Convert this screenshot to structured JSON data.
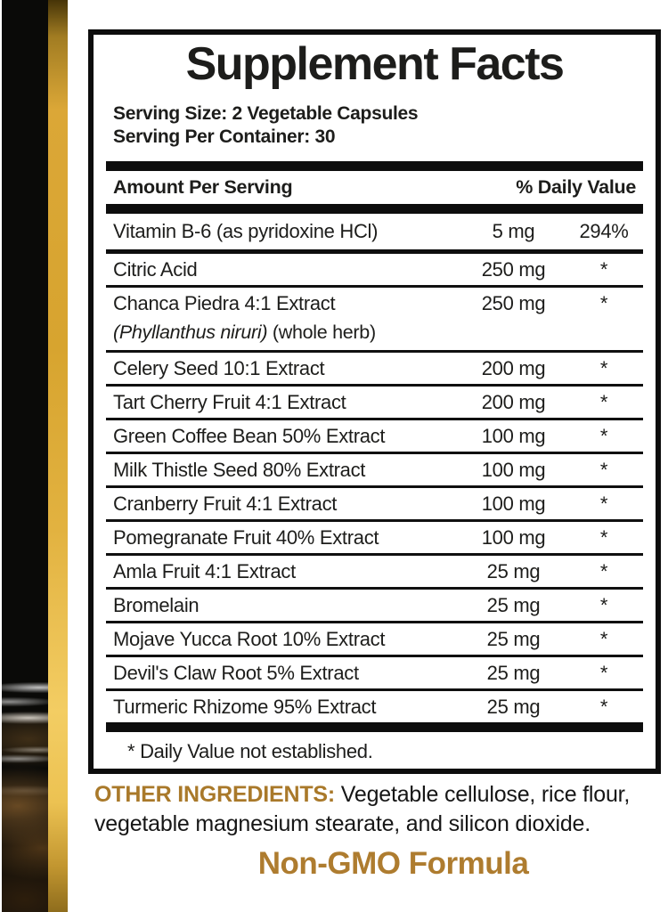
{
  "panel": {
    "title": "Supplement Facts",
    "serving_size": "Serving Size: 2 Vegetable Capsules",
    "serving_per_container": "Serving Per Container: 30",
    "header_amount": "Amount Per Serving",
    "header_dv": "% Daily Value",
    "rows": [
      {
        "name": "Vitamin B-6 (as pyridoxine HCl)",
        "amount": "5 mg",
        "dv": "294%",
        "sep": "med"
      },
      {
        "name": "Citric Acid",
        "amount": "250 mg",
        "dv": "*",
        "sep": "thin"
      },
      {
        "name": "Chanca Piedra 4:1 Extract",
        "sub_italic": "(Phyllanthus niruri)",
        "sub_rest": " (whole herb)",
        "amount": "250 mg",
        "dv": "*",
        "sep": "thin",
        "tall": true
      },
      {
        "name": "Celery Seed 10:1 Extract",
        "amount": "200 mg",
        "dv": "*",
        "sep": "thin"
      },
      {
        "name": "Tart Cherry Fruit 4:1 Extract",
        "amount": "200 mg",
        "dv": "*",
        "sep": "thin"
      },
      {
        "name": "Green Coffee Bean 50% Extract",
        "amount": "100 mg",
        "dv": "*",
        "sep": "thin"
      },
      {
        "name": "Milk Thistle Seed 80% Extract",
        "amount": "100 mg",
        "dv": "*",
        "sep": "thin"
      },
      {
        "name": "Cranberry Fruit 4:1 Extract",
        "amount": "100 mg",
        "dv": "*",
        "sep": "thin"
      },
      {
        "name": "Pomegranate Fruit 40% Extract",
        "amount": "100 mg",
        "dv": "*",
        "sep": "thin"
      },
      {
        "name": "Amla Fruit 4:1 Extract",
        "amount": "25 mg",
        "dv": "*",
        "sep": "thin"
      },
      {
        "name": "Bromelain",
        "amount": "25 mg",
        "dv": "*",
        "sep": "thin"
      },
      {
        "name": "Mojave Yucca Root 10% Extract",
        "amount": "25 mg",
        "dv": "*",
        "sep": "thin"
      },
      {
        "name": "Devil's Claw Root 5% Extract",
        "amount": "25 mg",
        "dv": "*",
        "sep": "thin"
      },
      {
        "name": "Turmeric Rhizome 95% Extract",
        "amount": "25 mg",
        "dv": "*",
        "sep": "thick"
      }
    ],
    "footnote": "* Daily Value not established."
  },
  "bottom": {
    "other_label": "OTHER INGREDIENTS:",
    "other_line1": " Vegetable cellulose, rice flour,",
    "other_line2": "vegetable magnesium stearate, and silicon dioxide.",
    "non_gmo": "Non-GMO Formula"
  },
  "colors": {
    "gold_text": "#a9792a",
    "non_gmo_gold": "#ae7c2f",
    "label_ink": "#1d1d1b",
    "bar_black": "#0d0d0d",
    "photo_black": "#0a0a08",
    "gold_bar_mid": "#d7a42f",
    "gold_bar_bright": "#f3cd63"
  }
}
